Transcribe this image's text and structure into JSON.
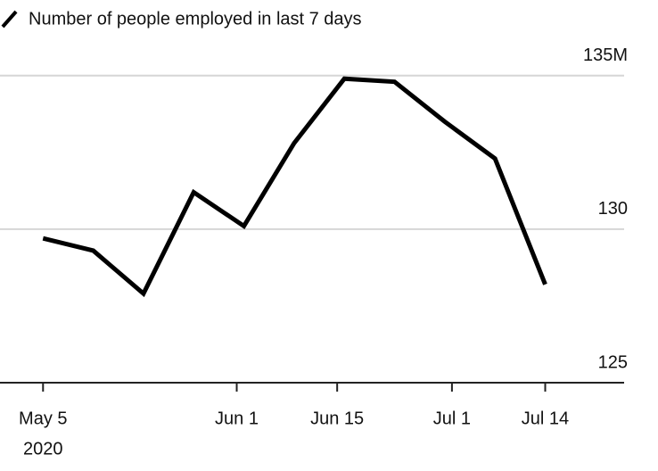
{
  "chart_data": {
    "type": "line",
    "x": [
      "2020-05-05",
      "2020-05-12",
      "2020-05-19",
      "2020-05-26",
      "2020-06-02",
      "2020-06-09",
      "2020-06-16",
      "2020-06-23",
      "2020-06-30",
      "2020-07-07",
      "2020-07-14"
    ],
    "series": [
      {
        "name": "Number of people employed in last 7 days",
        "color": "#000000",
        "values": [
          129.7,
          129.3,
          127.9,
          131.2,
          130.1,
          132.8,
          134.9,
          134.8,
          133.5,
          132.3,
          128.2
        ]
      }
    ],
    "xlim": [
      "2020-04-29",
      "2020-07-25"
    ],
    "xticks": [
      {
        "value": "2020-05-05",
        "label": "May 5"
      },
      {
        "value": "2020-06-01",
        "label": "Jun 1"
      },
      {
        "value": "2020-06-15",
        "label": "Jun 15"
      },
      {
        "value": "2020-07-01",
        "label": "Jul 1"
      },
      {
        "value": "2020-07-14",
        "label": "Jul 14"
      }
    ],
    "x_year_label": "2020",
    "ylim": [
      125,
      136.3
    ],
    "yticks": [
      {
        "value": 135,
        "label": "135M"
      },
      130,
      125
    ],
    "grid": true,
    "legend": "top-left"
  }
}
